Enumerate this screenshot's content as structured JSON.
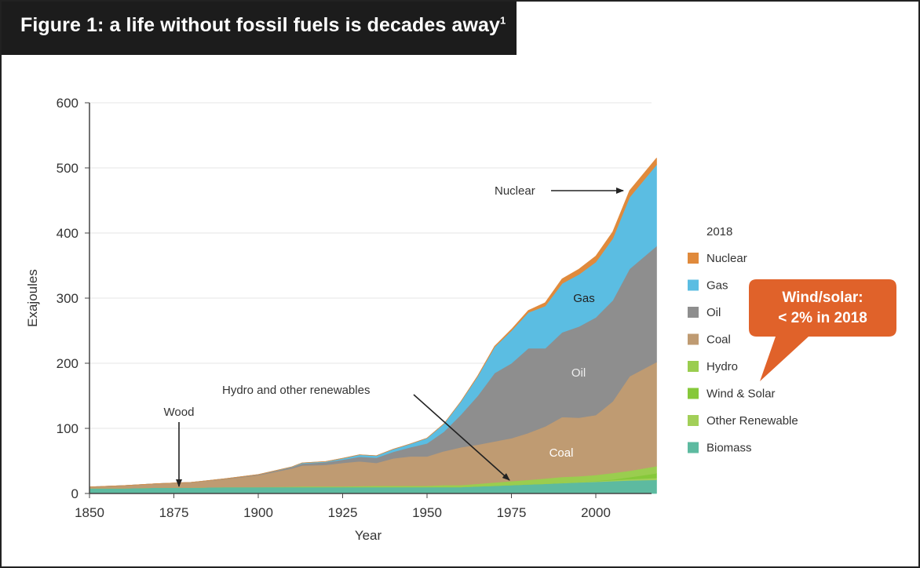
{
  "figure": {
    "title": "Figure 1: a life without fossil fuels is decades away",
    "title_footnote": "1"
  },
  "colors": {
    "nuclear": "#e08a3c",
    "gas": "#5bbde2",
    "oil": "#8e8e8e",
    "coal": "#bf9b72",
    "hydro": "#9acd4f",
    "wind_solar": "#86c83a",
    "other_renewable": "#a2cf58",
    "biomass": "#5dbaa0",
    "callout": "#e0622a",
    "title_bar": "#1c1c1c"
  },
  "chart_data": {
    "type": "area",
    "stacked": true,
    "xlabel": "Year",
    "ylabel": "Exajoules",
    "xlim": [
      1850,
      2018
    ],
    "ylim": [
      0,
      600
    ],
    "xticks": [
      1850,
      1875,
      1900,
      1925,
      1950,
      1975,
      2000
    ],
    "yticks": [
      0,
      100,
      200,
      300,
      400,
      500,
      600
    ],
    "grid": "horizontal",
    "legend": {
      "title": "2018",
      "position": "right",
      "items": [
        "Nuclear",
        "Gas",
        "Oil",
        "Coal",
        "Hydro",
        "Wind & Solar",
        "Other Renewable",
        "Biomass"
      ]
    },
    "x": [
      1850,
      1860,
      1870,
      1880,
      1890,
      1900,
      1910,
      1913,
      1920,
      1925,
      1930,
      1935,
      1940,
      1945,
      1950,
      1955,
      1960,
      1965,
      1970,
      1975,
      1980,
      1985,
      1990,
      1995,
      2000,
      2005,
      2010,
      2018
    ],
    "series": [
      {
        "name": "Biomass",
        "values": [
          8,
          8,
          9,
          9,
          10,
          10,
          10,
          10,
          10,
          10,
          10,
          10,
          10,
          10,
          10,
          10,
          10,
          11,
          12,
          13,
          14,
          15,
          16,
          17,
          18,
          19,
          20,
          21
        ]
      },
      {
        "name": "Other Renewable",
        "values": [
          0,
          0,
          0,
          0,
          0,
          0,
          0,
          0,
          0,
          0,
          0,
          0,
          0,
          0,
          0,
          0,
          0,
          0,
          0,
          0,
          0,
          0,
          0.5,
          0.5,
          1,
          1.5,
          2,
          3
        ]
      },
      {
        "name": "Wind & Solar",
        "values": [
          0,
          0,
          0,
          0,
          0,
          0,
          0,
          0,
          0,
          0,
          0,
          0,
          0,
          0,
          0,
          0,
          0,
          0,
          0,
          0,
          0,
          0,
          0,
          0,
          0.5,
          1,
          3,
          7
        ]
      },
      {
        "name": "Hydro",
        "values": [
          0,
          0,
          0,
          0,
          0,
          0,
          0.5,
          1,
          1,
          1,
          1.5,
          2,
          2,
          2,
          2,
          3,
          3,
          4,
          5,
          6,
          7,
          8,
          9,
          9,
          9,
          10,
          10,
          11
        ]
      },
      {
        "name": "Coal",
        "values": [
          2,
          4,
          6,
          8,
          12,
          18,
          28,
          32,
          33,
          36,
          38,
          35,
          42,
          45,
          45,
          52,
          58,
          60,
          63,
          66,
          72,
          80,
          92,
          90,
          92,
          110,
          145,
          160
        ]
      },
      {
        "name": "Oil",
        "values": [
          0,
          0,
          0,
          0,
          0.5,
          1,
          2,
          3,
          4,
          5,
          7,
          8,
          10,
          14,
          20,
          30,
          50,
          75,
          105,
          115,
          130,
          120,
          130,
          140,
          150,
          155,
          165,
          178
        ]
      },
      {
        "name": "Gas",
        "values": [
          0,
          0,
          0,
          0,
          0,
          0,
          0.5,
          1,
          1,
          2,
          3,
          3,
          4,
          5,
          8,
          12,
          20,
          30,
          40,
          50,
          55,
          65,
          75,
          80,
          85,
          95,
          110,
          125
        ]
      },
      {
        "name": "Nuclear",
        "values": [
          0,
          0,
          0,
          0,
          0,
          0,
          0,
          0,
          0,
          0,
          0,
          0,
          0,
          0,
          0,
          0,
          0,
          0.5,
          1,
          2,
          3,
          5,
          7,
          8,
          9,
          10,
          10,
          10
        ]
      }
    ],
    "annotations": {
      "nuclear": "Nuclear",
      "gas": "Gas",
      "oil": "Oil",
      "coal": "Coal",
      "wood": "Wood",
      "hydro_renewables": "Hydro and other renewables"
    },
    "callout": {
      "line1": "Wind/solar:",
      "line2": "< 2% in 2018"
    }
  }
}
